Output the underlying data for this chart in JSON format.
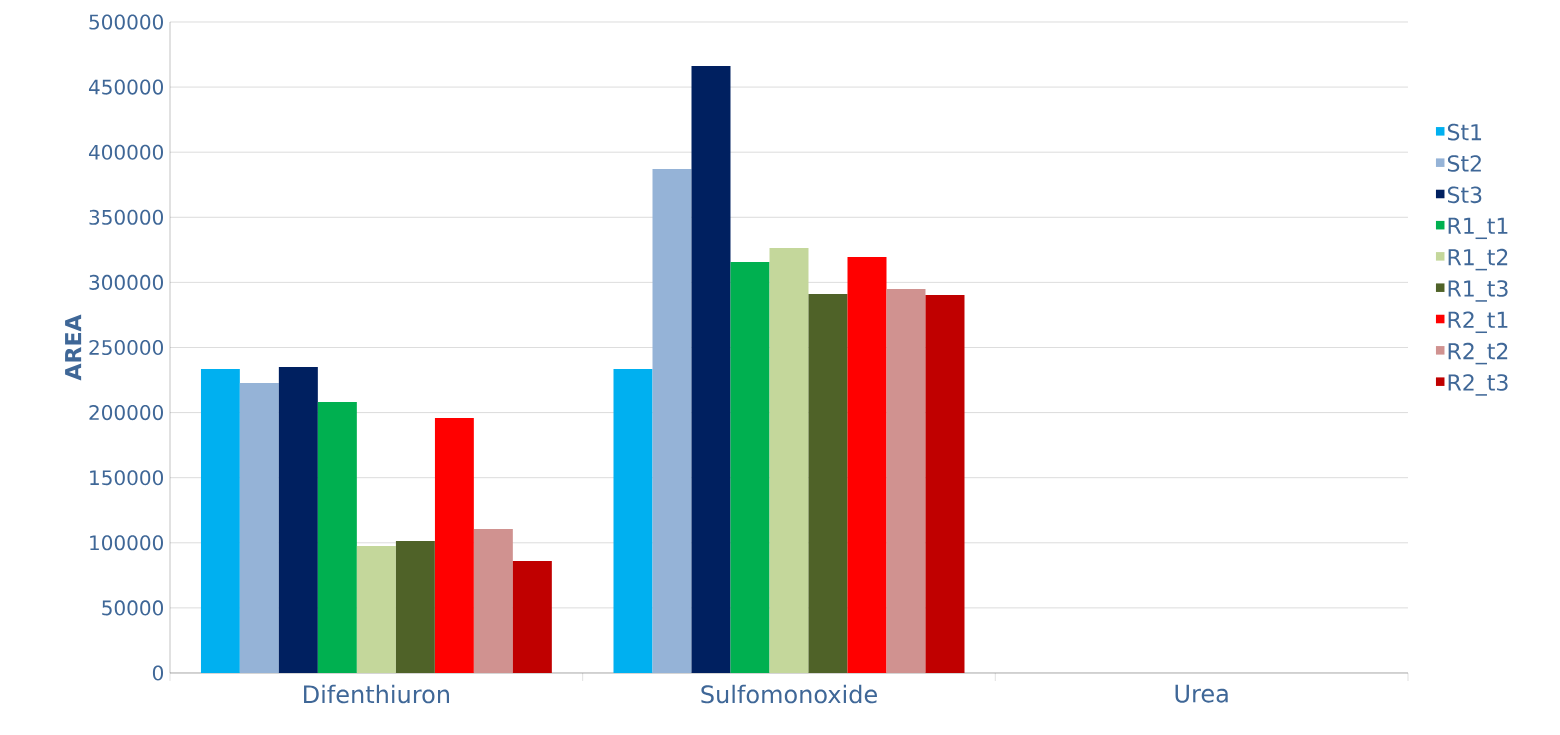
{
  "chart_data": {
    "type": "bar",
    "ylabel": "AREA",
    "categories": [
      "Difenthiuron",
      "Sulfomonoxide",
      "Urea"
    ],
    "series": [
      {
        "name": "St1",
        "color": "#00b0f0",
        "values": [
          233500,
          233500,
          0
        ]
      },
      {
        "name": "St2",
        "color": "#95b3d7",
        "values": [
          222700,
          387100,
          0
        ]
      },
      {
        "name": "St3",
        "color": "#002060",
        "values": [
          235000,
          466200,
          0
        ]
      },
      {
        "name": "R1_t1",
        "color": "#00b050",
        "values": [
          208100,
          315700,
          0
        ]
      },
      {
        "name": "R1_t2",
        "color": "#c4d79b",
        "values": [
          97500,
          326400,
          0
        ]
      },
      {
        "name": "R1_t3",
        "color": "#4f6228",
        "values": [
          101400,
          291100,
          0
        ]
      },
      {
        "name": "R2_t1",
        "color": "#ff0000",
        "values": [
          195900,
          319500,
          0
        ]
      },
      {
        "name": "R2_t2",
        "color": "#d09290",
        "values": [
          110600,
          294900,
          0
        ]
      },
      {
        "name": "R2_t3",
        "color": "#c00000",
        "values": [
          86000,
          290300,
          0
        ]
      }
    ],
    "ylim": [
      0,
      500000
    ],
    "yticks": [
      0,
      50000,
      100000,
      150000,
      200000,
      250000,
      300000,
      350000,
      400000,
      450000,
      500000
    ],
    "grid": "y",
    "legend": "right"
  }
}
